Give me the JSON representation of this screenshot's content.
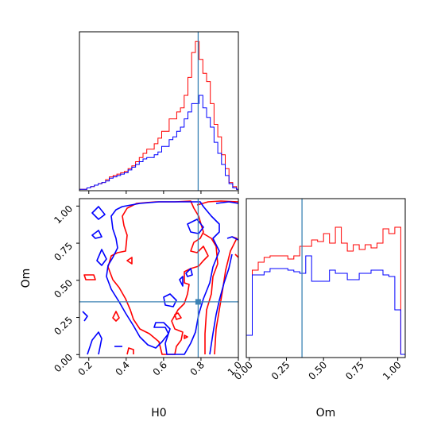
{
  "chart_data": {
    "type": "corner",
    "truth": {
      "H0": 0.785,
      "Om": 0.355
    },
    "truth_color": "#3b82b4",
    "series": [
      {
        "color": "#ff0000"
      },
      {
        "color": "#0000ff"
      }
    ],
    "panels": [
      {
        "id": "h0_hist",
        "type": "histogram",
        "xlim": [
          0.15,
          1.0
        ],
        "bin_edges": [
          0.15,
          0.17,
          0.19,
          0.21,
          0.23,
          0.25,
          0.27,
          0.29,
          0.31,
          0.33,
          0.35,
          0.37,
          0.39,
          0.41,
          0.43,
          0.45,
          0.47,
          0.49,
          0.51,
          0.53,
          0.55,
          0.57,
          0.59,
          0.61,
          0.63,
          0.65,
          0.67,
          0.69,
          0.71,
          0.73,
          0.75,
          0.77,
          0.79,
          0.81,
          0.83,
          0.85,
          0.87,
          0.89,
          0.91,
          0.93,
          0.95,
          0.97,
          0.99,
          1.0
        ],
        "series_values": [
          [
            1,
            1,
            2,
            3,
            4,
            5,
            6,
            8,
            10,
            11,
            12,
            13,
            14,
            16,
            18,
            21,
            24,
            27,
            30,
            30,
            34,
            38,
            43,
            43,
            52,
            52,
            57,
            60,
            69,
            82,
            100,
            108,
            95,
            85,
            79,
            63,
            48,
            39,
            26,
            16,
            6,
            3,
            1
          ],
          [
            1,
            1,
            2,
            3,
            4,
            5,
            6,
            7,
            9,
            10,
            11,
            12,
            13,
            15,
            17,
            19,
            21,
            23,
            24,
            24,
            26,
            28,
            32,
            32,
            37,
            39,
            43,
            46,
            52,
            57,
            63,
            63,
            69,
            60,
            53,
            46,
            35,
            27,
            19,
            11,
            5,
            2,
            1
          ]
        ],
        "ylim": [
          0,
          115
        ]
      },
      {
        "id": "om_hist",
        "type": "histogram",
        "xlim": [
          -0.02,
          1.05
        ],
        "bin_edges": [
          -0.02,
          0.02,
          0.06,
          0.1,
          0.14,
          0.18,
          0.22,
          0.26,
          0.3,
          0.34,
          0.38,
          0.42,
          0.46,
          0.5,
          0.54,
          0.58,
          0.62,
          0.66,
          0.7,
          0.74,
          0.78,
          0.82,
          0.86,
          0.9,
          0.94,
          0.98,
          1.02,
          1.05
        ],
        "series_values": [
          [
            14,
            55,
            60,
            63,
            64,
            64,
            64,
            62,
            64,
            70,
            70,
            74,
            73,
            78,
            72,
            82,
            72,
            67,
            71,
            68,
            71,
            69,
            72,
            81,
            78,
            82,
            2
          ],
          [
            14,
            52,
            52,
            54,
            56,
            56,
            56,
            55,
            54,
            53,
            64,
            48,
            48,
            48,
            55,
            53,
            53,
            49,
            49,
            53,
            53,
            55,
            55,
            52,
            51,
            30,
            2
          ]
        ],
        "ylim": [
          0,
          100
        ],
        "xticks": [
          "0.00",
          "0.25",
          "0.50",
          "0.75",
          "1.00"
        ],
        "xlabel": "Om"
      },
      {
        "id": "h0_om_contour",
        "type": "contour",
        "xlim": [
          0.15,
          1.0
        ],
        "ylim": [
          -0.02,
          1.05
        ],
        "xticks": [
          "0.2",
          "0.4",
          "0.6",
          "0.8",
          "1.0"
        ],
        "yticks": [
          "0.00",
          "0.25",
          "0.50",
          "0.75",
          "1.00"
        ],
        "xlabel": "H0",
        "ylabel": "Om"
      }
    ]
  }
}
